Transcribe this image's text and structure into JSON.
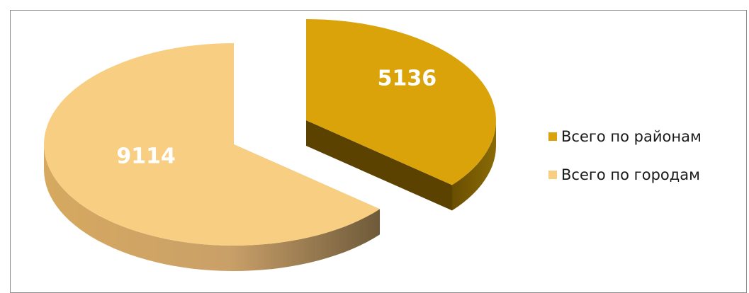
{
  "chart_data": {
    "type": "pie",
    "style": "3d-exploded",
    "categories": [
      "Всего по районам",
      "Всего по городам"
    ],
    "values": [
      5136,
      9114
    ],
    "colors": [
      "#DAA30A",
      "#F8CE83"
    ],
    "legend_position": "right",
    "data_labels": [
      "5136",
      "9114"
    ]
  },
  "legend": {
    "items": [
      {
        "label": "Всего по районам",
        "color": "#DAA30A"
      },
      {
        "label": "Всего по городам",
        "color": "#F8CE83"
      }
    ]
  }
}
